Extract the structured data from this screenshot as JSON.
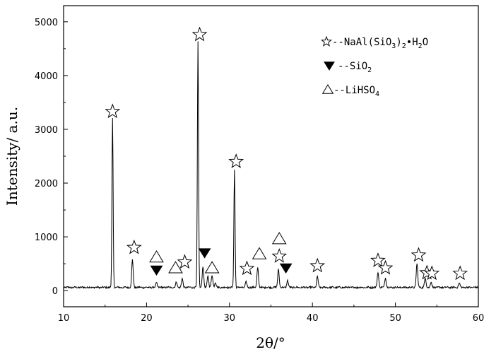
{
  "chart_data": {
    "type": "line",
    "xlabel": "2θ/°",
    "ylabel": "Intensity/ a.u.",
    "xlim": [
      10,
      60
    ],
    "ylim": [
      -300,
      5300
    ],
    "xticks": [
      10,
      20,
      30,
      40,
      50,
      60
    ],
    "yticks": [
      0,
      1000,
      2000,
      3000,
      4000,
      5000
    ],
    "grid": false,
    "legend_position": "top-right",
    "legend": [
      {
        "marker": "star",
        "prefix": "--",
        "text": "NaAl(SiO",
        "sub1": "3",
        "mid": ")",
        "sub2": "2",
        "suffix": "•H",
        "sub3": "2",
        "tail": "O"
      },
      {
        "marker": "filled-triangle-down",
        "prefix": "--",
        "text": "SiO",
        "sub1": "2"
      },
      {
        "marker": "open-triangle-up",
        "prefix": "--",
        "text": "LiHSO",
        "sub1": "4"
      }
    ],
    "series": [
      {
        "baseline": 60,
        "peaks": [
          {
            "x": 15.9,
            "y": 3200
          },
          {
            "x": 18.3,
            "y": 570
          },
          {
            "x": 21.2,
            "y": 150
          },
          {
            "x": 23.6,
            "y": 160
          },
          {
            "x": 24.3,
            "y": 220
          },
          {
            "x": 26.2,
            "y": 4620
          },
          {
            "x": 26.8,
            "y": 450
          },
          {
            "x": 27.4,
            "y": 280
          },
          {
            "x": 27.9,
            "y": 290
          },
          {
            "x": 28.3,
            "y": 160
          },
          {
            "x": 30.6,
            "y": 2250
          },
          {
            "x": 32.0,
            "y": 160
          },
          {
            "x": 33.4,
            "y": 430
          },
          {
            "x": 35.9,
            "y": 400
          },
          {
            "x": 37.0,
            "y": 190
          },
          {
            "x": 40.6,
            "y": 260
          },
          {
            "x": 47.9,
            "y": 350
          },
          {
            "x": 48.8,
            "y": 240
          },
          {
            "x": 52.6,
            "y": 500
          },
          {
            "x": 53.6,
            "y": 240
          },
          {
            "x": 54.3,
            "y": 160
          },
          {
            "x": 57.7,
            "y": 140
          }
        ]
      }
    ],
    "annotations": [
      {
        "marker": "star",
        "x": 15.9,
        "y": 3330
      },
      {
        "marker": "star",
        "x": 18.5,
        "y": 800
      },
      {
        "marker": "open-triangle-up",
        "x": 21.2,
        "y": 620
      },
      {
        "marker": "filled-triangle-down",
        "x": 21.2,
        "y": 380
      },
      {
        "marker": "open-triangle-up",
        "x": 23.5,
        "y": 420
      },
      {
        "marker": "star",
        "x": 24.6,
        "y": 530
      },
      {
        "marker": "star",
        "x": 26.4,
        "y": 4760
      },
      {
        "marker": "filled-triangle-down",
        "x": 27.0,
        "y": 700
      },
      {
        "marker": "open-triangle-up",
        "x": 27.9,
        "y": 420
      },
      {
        "marker": "star",
        "x": 30.8,
        "y": 2400
      },
      {
        "marker": "star",
        "x": 32.1,
        "y": 410
      },
      {
        "marker": "open-triangle-up",
        "x": 33.6,
        "y": 680
      },
      {
        "marker": "open-triangle-up",
        "x": 36.0,
        "y": 960
      },
      {
        "marker": "star",
        "x": 36.0,
        "y": 640
      },
      {
        "marker": "filled-triangle-down",
        "x": 36.8,
        "y": 420
      },
      {
        "marker": "star",
        "x": 40.6,
        "y": 460
      },
      {
        "marker": "star",
        "x": 47.9,
        "y": 560
      },
      {
        "marker": "star",
        "x": 48.8,
        "y": 420
      },
      {
        "marker": "star",
        "x": 52.8,
        "y": 660
      },
      {
        "marker": "star",
        "x": 53.8,
        "y": 330
      },
      {
        "marker": "star",
        "x": 54.4,
        "y": 320
      },
      {
        "marker": "star",
        "x": 57.8,
        "y": 320
      }
    ]
  }
}
